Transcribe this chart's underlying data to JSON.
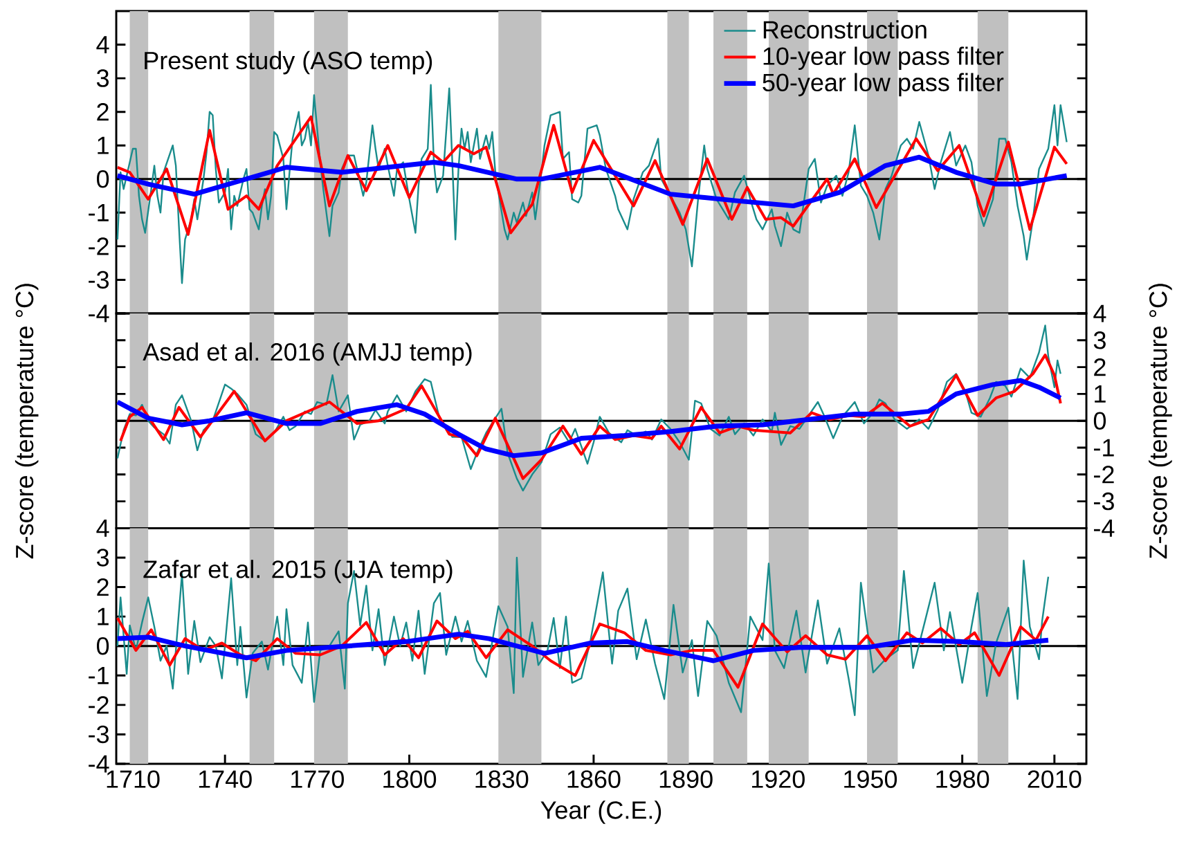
{
  "chart_data": [
    {
      "type": "line",
      "title": "Present study (ASO temp)",
      "xlim": [
        1704.6,
        2020.4
      ],
      "ylim": [
        -4,
        5
      ],
      "yticks": [
        -4,
        -3,
        -2,
        -1,
        0,
        1,
        2,
        3,
        4
      ],
      "tick_labels": "y",
      "legend": "top right",
      "series": [
        {
          "name": "Reconstruction",
          "color": "#1a8c8c",
          "x": [
            1705,
            1706,
            1707,
            1709,
            1710,
            1711,
            1712,
            1713,
            1714,
            1716,
            1717,
            1718,
            1719,
            1720,
            1723,
            1724,
            1725,
            1726,
            1727,
            1729,
            1730,
            1731,
            1733,
            1734,
            1735,
            1736,
            1737,
            1738,
            1740,
            1741,
            1742,
            1743,
            1744,
            1746,
            1747,
            1748,
            1749,
            1751,
            1752,
            1753,
            1754,
            1755,
            1756,
            1757,
            1759,
            1760,
            1761,
            1762,
            1764,
            1765,
            1766,
            1767,
            1768,
            1769,
            1770,
            1771,
            1772,
            1774,
            1775,
            1777,
            1778,
            1780,
            1782,
            1783,
            1785,
            1786,
            1788,
            1789,
            1790,
            1792,
            1793,
            1795,
            1796,
            1798,
            1800,
            1802,
            1803,
            1804,
            1806,
            1807,
            1808,
            1809,
            1811,
            1813,
            1814,
            1815,
            1816,
            1817,
            1818,
            1819,
            1820,
            1822,
            1823,
            1825,
            1826,
            1827,
            1828,
            1829,
            1831,
            1832,
            1834,
            1835,
            1837,
            1838,
            1840,
            1841,
            1843,
            1844,
            1846,
            1849,
            1850,
            1852,
            1853,
            1855,
            1856,
            1858,
            1861,
            1862,
            1864,
            1867,
            1868,
            1871,
            1873,
            1876,
            1878,
            1881,
            1882,
            1885,
            1888,
            1890,
            1892,
            1894,
            1896,
            1897,
            1900,
            1902,
            1904,
            1906,
            1909,
            1911,
            1913,
            1915,
            1918,
            1919,
            1921,
            1923,
            1925,
            1927,
            1930,
            1932,
            1934,
            1936,
            1939,
            1941,
            1943,
            1945,
            1947,
            1949,
            1951,
            1953,
            1955,
            1957,
            1960,
            1962,
            1964,
            1966,
            1969,
            1971,
            1973,
            1976,
            1978,
            1981,
            1983,
            1985,
            1987,
            1990,
            1992,
            1994,
            1996,
            1998,
            2000,
            2001,
            2003,
            2005,
            2008,
            2010,
            2011,
            2012,
            2014
          ],
          "values": [
            -1.8,
            0.2,
            -0.3,
            0.5,
            0.9,
            0.9,
            -0.5,
            -1.2,
            -1.6,
            -0.3,
            0.4,
            -0.5,
            -1.0,
            0.2,
            1.0,
            0.4,
            -1.4,
            -3.1,
            -1.8,
            -1.2,
            -0.6,
            -1.2,
            0.0,
            0.8,
            2.0,
            1.9,
            0.3,
            -0.7,
            -0.4,
            0.3,
            -1.5,
            -0.5,
            -0.8,
            0.0,
            0.3,
            -0.9,
            -1.0,
            -1.5,
            -0.8,
            -0.3,
            -1.2,
            -0.5,
            1.4,
            1.3,
            0.6,
            -0.9,
            0.2,
            1.2,
            2.0,
            1.0,
            1.2,
            1.7,
            1.0,
            2.5,
            1.5,
            0.5,
            -0.3,
            -1.7,
            -0.8,
            -0.4,
            0.3,
            0.7,
            0.7,
            0.3,
            -0.5,
            -0.1,
            1.6,
            0.9,
            0.3,
            0.9,
            0.4,
            -0.5,
            0.3,
            0.5,
            -0.6,
            -1.6,
            -0.2,
            0.6,
            0.9,
            2.8,
            0.5,
            -0.4,
            0.1,
            2.7,
            0.5,
            -1.8,
            0.3,
            1.5,
            0.9,
            1.4,
            0.5,
            1.5,
            0.6,
            1.3,
            0.9,
            1.4,
            0.2,
            -0.4,
            -1.5,
            -1.8,
            -1.0,
            -1.3,
            -0.7,
            -1.1,
            -0.4,
            -1.2,
            0.2,
            1.0,
            1.9,
            2.0,
            0.6,
            0.8,
            -0.6,
            -0.7,
            -0.5,
            1.5,
            1.6,
            1.3,
            0.3,
            -0.5,
            -0.9,
            -1.5,
            -0.6,
            0.2,
            0.4,
            1.2,
            0.0,
            -0.5,
            -1.0,
            -1.5,
            -2.6,
            -0.6,
            1.0,
            0.3,
            -0.6,
            -0.9,
            -1.2,
            -0.4,
            0.1,
            -0.6,
            -1.2,
            -1.5,
            -0.9,
            -1.4,
            -2.0,
            -1.0,
            -1.5,
            -1.6,
            0.3,
            0.6,
            -0.7,
            -0.2,
            0.1,
            -0.5,
            0.2,
            1.6,
            -0.2,
            -0.5,
            -1.0,
            -1.8,
            -0.3,
            0.1,
            1.0,
            1.2,
            0.9,
            1.7,
            0.7,
            -0.3,
            0.5,
            1.4,
            0.4,
            1.0,
            0.5,
            -0.8,
            -1.4,
            -0.6,
            1.2,
            1.2,
            0.5,
            -0.8,
            -1.7,
            -2.4,
            -1.2,
            0.3,
            0.9,
            2.2,
            1.0,
            2.2,
            1.1
          ]
        },
        {
          "name": "10-year low pass filter",
          "color": "#ff0000",
          "x": [
            1705,
            1709,
            1715,
            1721,
            1728,
            1735,
            1741,
            1747,
            1751,
            1757,
            1768,
            1774,
            1780,
            1786,
            1793,
            1800,
            1807,
            1811,
            1816,
            1821,
            1825,
            1833,
            1840,
            1847,
            1853,
            1860,
            1873,
            1880,
            1889,
            1897,
            1905,
            1910,
            1916,
            1921,
            1925,
            1936,
            1938,
            1945,
            1952,
            1965,
            1972,
            1979,
            1987,
            1995,
            2002,
            2010,
            2014
          ],
          "values": [
            0.35,
            0.2,
            -0.6,
            0.3,
            -1.65,
            1.45,
            -0.9,
            -0.5,
            -0.9,
            0.4,
            1.85,
            -0.8,
            0.7,
            -0.35,
            1.0,
            -0.55,
            0.8,
            0.5,
            1.0,
            0.75,
            0.95,
            -1.6,
            -0.75,
            1.6,
            -0.4,
            1.15,
            -0.8,
            0.55,
            -1.35,
            0.6,
            -1.2,
            -0.25,
            -1.2,
            -1.15,
            -1.4,
            0.0,
            -0.45,
            0.6,
            -0.85,
            1.2,
            0.25,
            1.0,
            -1.1,
            1.1,
            -1.5,
            0.95,
            0.45
          ]
        },
        {
          "name": "50-year low pass filter",
          "color": "#0000ff",
          "x": [
            1705,
            1715,
            1730,
            1745,
            1760,
            1778,
            1808,
            1816,
            1835,
            1843,
            1862,
            1885,
            1907,
            1925,
            1940,
            1955,
            1966,
            1978,
            1991,
            1999,
            2014
          ],
          "values": [
            0.1,
            -0.15,
            -0.45,
            -0.05,
            0.35,
            0.2,
            0.5,
            0.4,
            0.0,
            0.0,
            0.35,
            -0.45,
            -0.65,
            -0.8,
            -0.4,
            0.4,
            0.65,
            0.2,
            -0.15,
            -0.15,
            0.1
          ]
        }
      ],
      "ref_lines": [
        {
          "axis": "y",
          "value": 0,
          "color": "#000000"
        }
      ],
      "bands": [
        {
          "axis": "x",
          "from": 1709,
          "to": 1715,
          "color": "#c0c0c0"
        },
        {
          "axis": "x",
          "from": 1748,
          "to": 1756,
          "color": "#c0c0c0"
        },
        {
          "axis": "x",
          "from": 1769,
          "to": 1780,
          "color": "#c0c0c0"
        },
        {
          "axis": "x",
          "from": 1829,
          "to": 1843,
          "color": "#c0c0c0"
        },
        {
          "axis": "x",
          "from": 1884,
          "to": 1891,
          "color": "#c0c0c0"
        },
        {
          "axis": "x",
          "from": 1899,
          "to": 1910,
          "color": "#c0c0c0"
        },
        {
          "axis": "x",
          "from": 1917,
          "to": 1930,
          "color": "#c0c0c0"
        },
        {
          "axis": "x",
          "from": 1949,
          "to": 1959,
          "color": "#c0c0c0"
        },
        {
          "axis": "x",
          "from": 1985,
          "to": 1995,
          "color": "#c0c0c0"
        }
      ]
    },
    {
      "type": "line",
      "title": "Asad et al. 2016 (AMJJ temp)",
      "ylabel": "Z-score (temperature °C)",
      "y2label": "Z-score (temperature °C)",
      "xlim": [
        1704.6,
        2020.4
      ],
      "y2lim": [
        -4,
        4
      ],
      "y2ticks": [
        -4,
        -3,
        -2,
        -1,
        0,
        1,
        2,
        3,
        4
      ],
      "tick_labels": "y",
      "series": [
        {
          "color": "#1a8c8c",
          "axis": "y2",
          "x": [
            1705,
            1707,
            1709,
            1711,
            1713,
            1715,
            1717,
            1720,
            1722,
            1724,
            1726,
            1729,
            1731,
            1733,
            1736,
            1740,
            1742,
            1744,
            1747,
            1750,
            1753,
            1756,
            1759,
            1761,
            1763,
            1766,
            1768,
            1770,
            1773,
            1775,
            1777,
            1780,
            1782,
            1784,
            1787,
            1789,
            1792,
            1793,
            1796,
            1799,
            1802,
            1805,
            1807,
            1810,
            1812,
            1814,
            1817,
            1820,
            1822,
            1825,
            1828,
            1830,
            1832,
            1835,
            1837,
            1840,
            1843,
            1846,
            1849,
            1852,
            1854,
            1858,
            1860,
            1862,
            1865,
            1869,
            1871,
            1874,
            1877,
            1879,
            1882,
            1885,
            1888,
            1891,
            1893,
            1895,
            1898,
            1901,
            1904,
            1906,
            1909,
            1912,
            1915,
            1918,
            1919,
            1921,
            1924,
            1927,
            1930,
            1933,
            1935,
            1938,
            1941,
            1945,
            1948,
            1951,
            1953,
            1955,
            1958,
            1962,
            1966,
            1969,
            1972,
            1975,
            1978,
            1981,
            1983,
            1986,
            1989,
            1991,
            1994,
            1996,
            1999,
            2002,
            2005,
            2007,
            2008,
            2010,
            2011,
            2012
          ],
          "values": [
            -1.4,
            -0.35,
            0.25,
            0.2,
            0.6,
            0.0,
            -0.25,
            -0.5,
            -0.85,
            0.6,
            0.95,
            0.0,
            -1.1,
            -0.35,
            0.0,
            1.35,
            1.2,
            1.0,
            0.6,
            -0.5,
            -0.75,
            -0.45,
            0.15,
            -0.35,
            -0.2,
            0.35,
            0.25,
            0.7,
            0.6,
            1.7,
            0.35,
            0.95,
            -0.7,
            -0.15,
            0.0,
            0.4,
            -0.1,
            0.35,
            0.95,
            0.35,
            1.1,
            1.55,
            1.45,
            0.0,
            -0.25,
            -0.6,
            -0.6,
            -1.8,
            -1.2,
            -0.45,
            0.1,
            0.45,
            -1.2,
            -2.15,
            -2.6,
            -2.0,
            -1.55,
            -0.5,
            -0.25,
            -0.8,
            -0.3,
            -1.6,
            -0.8,
            0.15,
            -0.45,
            -0.8,
            -0.35,
            -0.55,
            -0.4,
            -0.7,
            0.05,
            -0.3,
            -0.8,
            -1.45,
            0.75,
            0.65,
            -0.3,
            -0.55,
            0.15,
            -0.5,
            -0.1,
            -0.55,
            0.05,
            -0.4,
            0.3,
            -0.9,
            -0.2,
            -0.3,
            0.2,
            0.7,
            0.2,
            -0.65,
            0.15,
            0.7,
            -0.1,
            0.3,
            0.8,
            0.65,
            0.05,
            -0.3,
            0.05,
            -0.3,
            0.4,
            1.45,
            1.75,
            1.1,
            0.3,
            0.15,
            0.85,
            1.45,
            1.3,
            0.9,
            1.95,
            1.6,
            2.55,
            3.55,
            2.4,
            1.25,
            2.25,
            1.75
          ]
        },
        {
          "color": "#ff0000",
          "axis": "y2",
          "x": [
            1706,
            1709,
            1713,
            1720,
            1725,
            1732,
            1743,
            1753,
            1760,
            1774,
            1783,
            1790,
            1799,
            1804,
            1813,
            1817,
            1822,
            1828,
            1837,
            1843,
            1850,
            1856,
            1862,
            1867,
            1873,
            1879,
            1882,
            1888,
            1895,
            1901,
            1907,
            1912,
            1924,
            1931,
            1937,
            1943,
            1948,
            1954,
            1963,
            1969,
            1978,
            1985,
            1991,
            1997,
            2003,
            2007,
            2010,
            2012
          ],
          "values": [
            -0.75,
            0.15,
            0.5,
            -0.7,
            0.5,
            -0.6,
            1.1,
            -0.75,
            0.0,
            0.7,
            -0.1,
            0.0,
            0.45,
            1.3,
            -0.5,
            -0.6,
            -1.3,
            0.1,
            -2.15,
            -1.45,
            -0.2,
            -1.25,
            -0.2,
            -0.7,
            -0.55,
            -0.65,
            -0.2,
            -1.05,
            0.5,
            -0.45,
            -0.2,
            -0.35,
            -0.45,
            0.3,
            0.05,
            0.2,
            0.15,
            0.65,
            -0.2,
            0.05,
            1.7,
            0.2,
            0.85,
            1.1,
            1.75,
            2.45,
            1.7,
            0.65
          ]
        },
        {
          "color": "#0000ff",
          "axis": "y2",
          "x": [
            1705,
            1715,
            1726,
            1735,
            1747,
            1760,
            1771,
            1783,
            1796,
            1805,
            1816,
            1825,
            1834,
            1843,
            1856,
            1870,
            1885,
            1900,
            1915,
            1930,
            1945,
            1960,
            1969,
            1978,
            1990,
            1999,
            2005,
            2012
          ],
          "values": [
            0.7,
            0.1,
            -0.15,
            0.0,
            0.3,
            -0.1,
            -0.1,
            0.35,
            0.6,
            0.25,
            -0.5,
            -1.05,
            -1.3,
            -1.2,
            -0.65,
            -0.55,
            -0.4,
            -0.2,
            -0.15,
            0.05,
            0.25,
            0.25,
            0.35,
            1.0,
            1.35,
            1.5,
            1.25,
            0.85
          ]
        }
      ],
      "ref_lines": [
        {
          "axis": "y2",
          "value": 0,
          "color": "#000000"
        }
      ],
      "bands": [
        {
          "axis": "x",
          "from": 1709,
          "to": 1715,
          "color": "#c0c0c0"
        },
        {
          "axis": "x",
          "from": 1748,
          "to": 1756,
          "color": "#c0c0c0"
        },
        {
          "axis": "x",
          "from": 1769,
          "to": 1780,
          "color": "#c0c0c0"
        },
        {
          "axis": "x",
          "from": 1829,
          "to": 1843,
          "color": "#c0c0c0"
        },
        {
          "axis": "x",
          "from": 1884,
          "to": 1891,
          "color": "#c0c0c0"
        },
        {
          "axis": "x",
          "from": 1899,
          "to": 1910,
          "color": "#c0c0c0"
        },
        {
          "axis": "x",
          "from": 1917,
          "to": 1930,
          "color": "#c0c0c0"
        },
        {
          "axis": "x",
          "from": 1949,
          "to": 1959,
          "color": "#c0c0c0"
        },
        {
          "axis": "x",
          "from": 1985,
          "to": 1995,
          "color": "#c0c0c0"
        }
      ]
    },
    {
      "type": "line",
      "title": "Zafar et al. 2015 (JJA temp)",
      "xlabel": "Year (C.E.)",
      "xlim": [
        1704.6,
        2020.4
      ],
      "xticks": [
        1710,
        1740,
        1770,
        1800,
        1830,
        1860,
        1890,
        1920,
        1950,
        1980,
        2010
      ],
      "ylim": [
        -4,
        4
      ],
      "yticks": [
        -4,
        -3,
        -2,
        -1,
        0,
        1,
        2,
        3,
        4
      ],
      "series": [
        {
          "color": "#1a8c8c",
          "x": [
            1705,
            1706,
            1708,
            1709,
            1711,
            1713,
            1715,
            1717,
            1719,
            1721,
            1723,
            1726,
            1728,
            1730,
            1732,
            1735,
            1737,
            1739,
            1742,
            1744,
            1745,
            1747,
            1749,
            1752,
            1754,
            1757,
            1759,
            1760,
            1762,
            1765,
            1767,
            1769,
            1771,
            1774,
            1777,
            1779,
            1780,
            1782,
            1784,
            1786,
            1788,
            1790,
            1792,
            1795,
            1797,
            1799,
            1801,
            1803,
            1805,
            1808,
            1810,
            1812,
            1815,
            1817,
            1819,
            1822,
            1825,
            1829,
            1832,
            1834,
            1835,
            1837,
            1840,
            1842,
            1845,
            1847,
            1849,
            1851,
            1853,
            1856,
            1859,
            1863,
            1866,
            1868,
            1871,
            1874,
            1877,
            1880,
            1883,
            1886,
            1889,
            1892,
            1894,
            1897,
            1900,
            1904,
            1908,
            1911,
            1915,
            1917,
            1919,
            1922,
            1926,
            1929,
            1933,
            1936,
            1940,
            1943,
            1945,
            1947,
            1951,
            1955,
            1959,
            1961,
            1964,
            1968,
            1971,
            1974,
            1976,
            1980,
            1983,
            1985,
            1988,
            1991,
            1995,
            1998,
            2000,
            2002,
            2005,
            2006,
            2008
          ],
          "values": [
            0.0,
            1.65,
            -0.95,
            0.7,
            -0.15,
            0.8,
            1.65,
            0.65,
            -0.5,
            0.0,
            -1.45,
            2.45,
            -0.95,
            0.85,
            -0.55,
            0.3,
            0.0,
            -1.1,
            2.3,
            -0.65,
            0.65,
            -1.75,
            -0.25,
            0.15,
            -0.8,
            1.0,
            -0.65,
            1.25,
            -0.65,
            -1.25,
            0.8,
            -1.9,
            -0.15,
            0.0,
            0.5,
            -1.45,
            1.45,
            2.55,
            0.7,
            2.05,
            -0.15,
            1.25,
            -0.65,
            1.0,
            0.0,
            0.8,
            -0.5,
            1.2,
            -0.95,
            1.45,
            1.8,
            -0.3,
            1.0,
            0.15,
            0.85,
            -0.5,
            -1.05,
            1.35,
            0.65,
            -1.6,
            3.0,
            -1.05,
            0.8,
            -0.65,
            -0.15,
            0.95,
            -0.75,
            1.0,
            -1.25,
            -1.1,
            0.2,
            2.5,
            -0.6,
            1.2,
            1.95,
            -0.45,
            0.9,
            -0.6,
            -1.8,
            1.4,
            -0.9,
            0.2,
            -1.7,
            0.85,
            0.35,
            -1.25,
            -2.25,
            1.0,
            0.2,
            2.8,
            -0.15,
            -0.75,
            1.2,
            -0.9,
            1.55,
            -0.6,
            0.6,
            -1.1,
            -2.35,
            2.15,
            -0.9,
            -0.45,
            -0.15,
            2.55,
            -0.75,
            0.9,
            2.15,
            -0.15,
            1.15,
            -1.25,
            0.65,
            1.8,
            -1.7,
            0.1,
            1.3,
            -1.8,
            2.9,
            0.65,
            -0.45,
            0.85,
            2.35
          ]
        },
        {
          "color": "#ff0000",
          "x": [
            1705,
            1711,
            1716,
            1722,
            1727,
            1733,
            1739,
            1745,
            1750,
            1757,
            1763,
            1771,
            1778,
            1786,
            1792,
            1798,
            1803,
            1809,
            1815,
            1819,
            1825,
            1832,
            1840,
            1846,
            1854,
            1862,
            1870,
            1877,
            1885,
            1892,
            1899,
            1907,
            1915,
            1923,
            1929,
            1936,
            1942,
            1949,
            1955,
            1962,
            1967,
            1973,
            1979,
            1984,
            1992,
            1999,
            2004,
            2008
          ],
          "values": [
            0.95,
            -0.15,
            0.55,
            -0.65,
            0.25,
            -0.15,
            0.1,
            -0.3,
            -0.5,
            0.25,
            -0.25,
            -0.3,
            0.0,
            0.8,
            -0.3,
            0.25,
            -0.4,
            0.85,
            0.25,
            0.5,
            -0.4,
            0.55,
            0.0,
            -0.5,
            -1.0,
            0.75,
            0.45,
            -0.15,
            -0.3,
            -0.15,
            -0.15,
            -1.4,
            0.75,
            -0.2,
            0.35,
            -0.3,
            -0.45,
            0.35,
            -0.5,
            0.45,
            0.1,
            0.6,
            0.05,
            0.45,
            -1.0,
            0.65,
            0.2,
            1.0
          ]
        },
        {
          "color": "#0000ff",
          "x": [
            1705,
            1715,
            1727,
            1747,
            1760,
            1780,
            1799,
            1816,
            1826,
            1844,
            1859,
            1871,
            1883,
            1899,
            1912,
            1927,
            1949,
            1964,
            1979,
            1994,
            2008
          ],
          "values": [
            0.25,
            0.3,
            0.0,
            -0.4,
            -0.15,
            0.0,
            0.15,
            0.4,
            0.25,
            -0.25,
            0.1,
            0.15,
            -0.15,
            -0.5,
            -0.15,
            -0.05,
            -0.05,
            0.2,
            0.15,
            0.05,
            0.2
          ]
        }
      ],
      "ref_lines": [
        {
          "axis": "y",
          "value": 0,
          "color": "#000000"
        }
      ],
      "bands": [
        {
          "axis": "x",
          "from": 1709,
          "to": 1715,
          "color": "#c0c0c0"
        },
        {
          "axis": "x",
          "from": 1748,
          "to": 1756,
          "color": "#c0c0c0"
        },
        {
          "axis": "x",
          "from": 1769,
          "to": 1780,
          "color": "#c0c0c0"
        },
        {
          "axis": "x",
          "from": 1829,
          "to": 1843,
          "color": "#c0c0c0"
        },
        {
          "axis": "x",
          "from": 1884,
          "to": 1891,
          "color": "#c0c0c0"
        },
        {
          "axis": "x",
          "from": 1899,
          "to": 1910,
          "color": "#c0c0c0"
        },
        {
          "axis": "x",
          "from": 1917,
          "to": 1930,
          "color": "#c0c0c0"
        },
        {
          "axis": "x",
          "from": 1949,
          "to": 1959,
          "color": "#c0c0c0"
        },
        {
          "axis": "x",
          "from": 1985,
          "to": 1995,
          "color": "#c0c0c0"
        }
      ]
    }
  ]
}
